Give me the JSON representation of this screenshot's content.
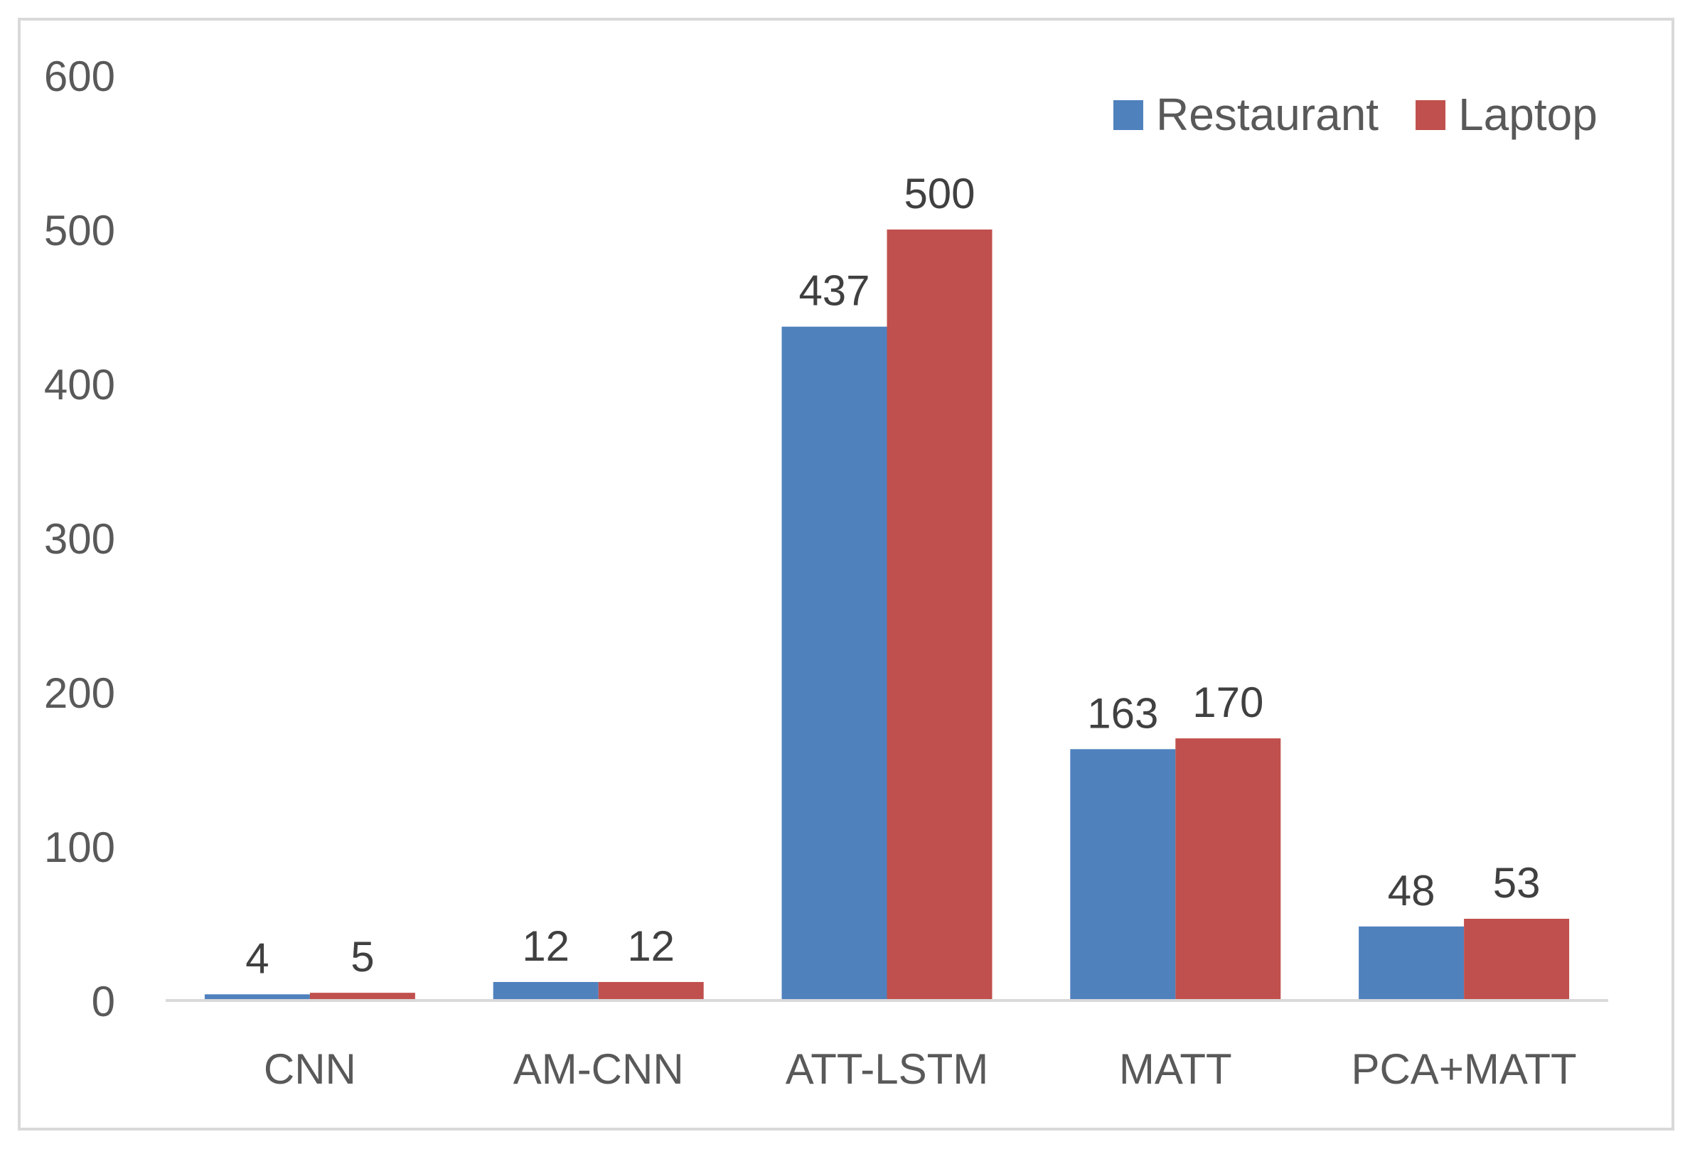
{
  "chart_data": {
    "type": "bar",
    "title": "",
    "xlabel": "",
    "ylabel": "",
    "categories": [
      "CNN",
      "AM-CNN",
      "ATT-LSTM",
      "MATT",
      "PCA+MATT"
    ],
    "series": [
      {
        "name": "Restaurant",
        "color": "#4f81bd",
        "values": [
          4,
          12,
          437,
          163,
          48
        ]
      },
      {
        "name": "Laptop",
        "color": "#c0504d",
        "values": [
          5,
          12,
          500,
          170,
          53
        ]
      }
    ],
    "ylim": [
      0,
      600
    ],
    "yticks": [
      0,
      100,
      200,
      300,
      400,
      500,
      600
    ],
    "grid": false,
    "legend_position": "top-right",
    "data_labels": true
  }
}
